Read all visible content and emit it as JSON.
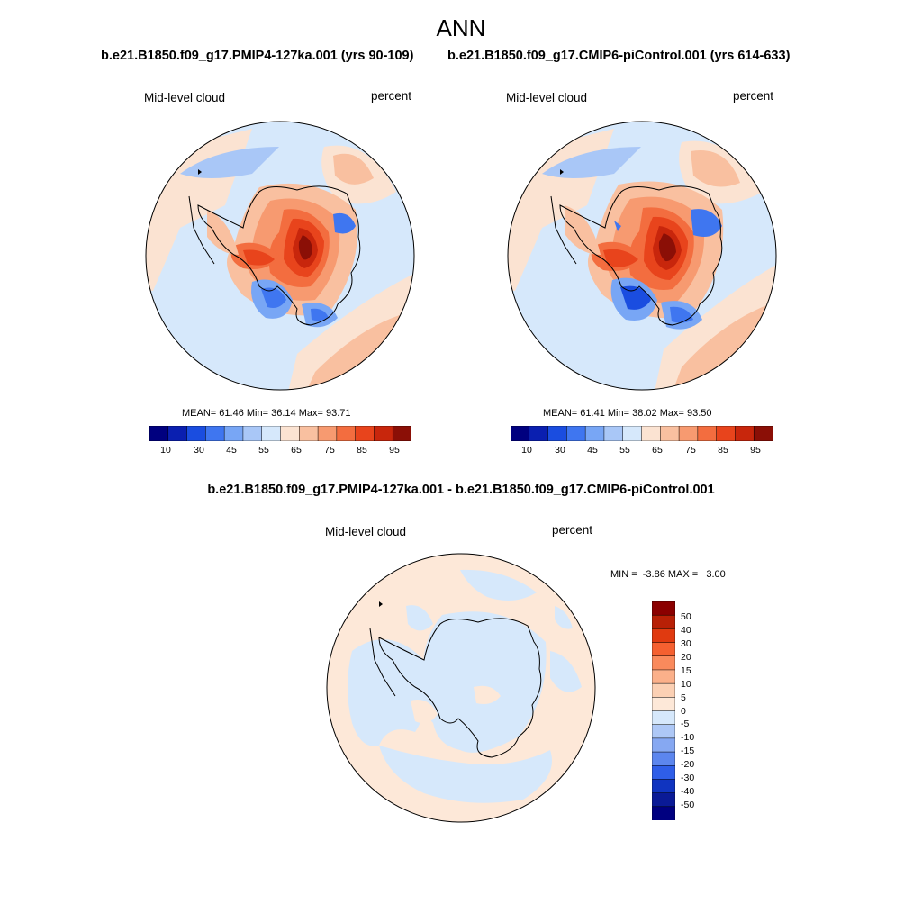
{
  "main_title": "ANN",
  "panels": [
    {
      "title": "b.e21.B1850.f09_g17.PMIP4-127ka.001 (yrs 90-109)",
      "variable": "Mid-level cloud",
      "units": "percent",
      "stats": {
        "mean_label": "MEAN=",
        "mean": "61.46",
        "min_label": "Min=",
        "min": "36.14",
        "max_label": "Max=",
        "max": "93.71"
      },
      "colorbar_ticks": [
        "10",
        "30",
        "45",
        "55",
        "65",
        "75",
        "85",
        "95"
      ]
    },
    {
      "title": "b.e21.B1850.f09_g17.CMIP6-piControl.001 (yrs 614-633)",
      "variable": "Mid-level cloud",
      "units": "percent",
      "stats": {
        "mean_label": "MEAN=",
        "mean": "61.41",
        "min_label": "Min=",
        "min": "38.02",
        "max_label": "Max=",
        "max": "93.50"
      },
      "colorbar_ticks": [
        "10",
        "30",
        "45",
        "55",
        "65",
        "75",
        "85",
        "95"
      ]
    }
  ],
  "diff_panel": {
    "title": "b.e21.B1850.f09_g17.PMIP4-127ka.001 - b.e21.B1850.f09_g17.CMIP6-piControl.001",
    "variable": "Mid-level cloud",
    "units": "percent",
    "min_max_text": "MIN =  -3.86 MAX =   3.00",
    "colorbar_ticks": [
      "50",
      "40",
      "30",
      "20",
      "15",
      "10",
      "5",
      "0",
      "-5",
      "-10",
      "-15",
      "-20",
      "-30",
      "-40",
      "-50"
    ]
  },
  "colors": {
    "abs_scale": [
      "#00007f",
      "#0a1fb0",
      "#1a4de0",
      "#3f76f0",
      "#78a6f5",
      "#a9c7f7",
      "#d6e8fb",
      "#fbe3d2",
      "#f9c0a0",
      "#f79a70",
      "#f36d3f",
      "#e8441c",
      "#c8260c",
      "#8b0f06"
    ],
    "diff_scale": [
      "#8b0000",
      "#b82006",
      "#e03a10",
      "#f56030",
      "#fa8a5c",
      "#fbb08a",
      "#fbd0b4",
      "#fde8d8",
      "#d6e8fb",
      "#aec8f6",
      "#86a8f2",
      "#5c86ee",
      "#2f5ee8",
      "#1034c0",
      "#0a1a96",
      "#000080"
    ],
    "ocean_base": "#d6e8fb",
    "diff_base": "#fde8d8"
  }
}
